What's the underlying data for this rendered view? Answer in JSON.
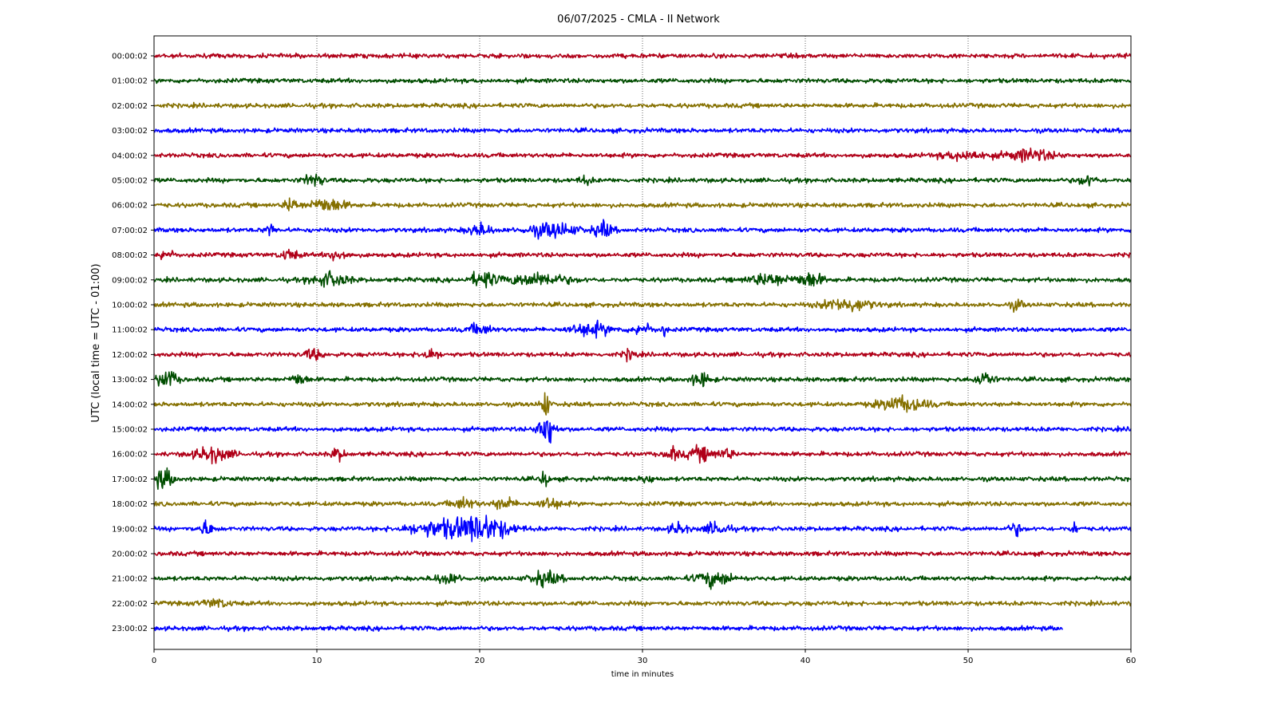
{
  "chart_data": {
    "type": "line",
    "title": "06/07/2025 - CMLA - II Network",
    "xlabel": "time in minutes",
    "ylabel": "UTC (local time = UTC - 01:00)",
    "xlim": [
      0,
      60
    ],
    "xticks": [
      0,
      10,
      20,
      30,
      40,
      50,
      60
    ],
    "grid": "vertical dotted lines at each x tick",
    "legend": "none",
    "colors": [
      "#b00018",
      "#004d00",
      "#857000",
      "#0000ff"
    ],
    "last_trace_end_minute": 55.8,
    "rows": [
      {
        "label": "00:00:02",
        "color": "#b00018",
        "events": []
      },
      {
        "label": "01:00:02",
        "color": "#004d00",
        "events": []
      },
      {
        "label": "02:00:02",
        "color": "#857000",
        "events": []
      },
      {
        "label": "03:00:02",
        "color": "#0000ff",
        "events": []
      },
      {
        "label": "04:00:02",
        "color": "#b00018",
        "events": [
          [
            49.8,
            1.6,
            1.8
          ],
          [
            53.8,
            1.5,
            2.6
          ]
        ]
      },
      {
        "label": "05:00:02",
        "color": "#004d00",
        "events": [
          [
            9.8,
            0.6,
            2.8
          ],
          [
            26.5,
            0.4,
            1.8
          ],
          [
            57.3,
            0.6,
            2.2
          ]
        ]
      },
      {
        "label": "06:00:02",
        "color": "#857000",
        "events": [
          [
            8.4,
            0.4,
            3.5
          ],
          [
            10.6,
            1.2,
            3.0
          ]
        ]
      },
      {
        "label": "07:00:02",
        "color": "#0000ff",
        "events": [
          [
            7.1,
            0.3,
            2.8
          ],
          [
            20.0,
            0.8,
            2.6
          ],
          [
            24.5,
            1.6,
            3.2
          ],
          [
            27.6,
            0.6,
            3.5
          ]
        ]
      },
      {
        "label": "08:00:02",
        "color": "#b00018",
        "events": [
          [
            0.7,
            0.5,
            2.2
          ],
          [
            8.3,
            0.6,
            2.2
          ],
          [
            11.3,
            0.6,
            2.4
          ]
        ]
      },
      {
        "label": "09:00:02",
        "color": "#004d00",
        "events": [
          [
            10.8,
            1.2,
            3.0
          ],
          [
            20.2,
            0.8,
            3.6
          ],
          [
            23.5,
            2.0,
            2.8
          ],
          [
            37.8,
            1.4,
            2.6
          ],
          [
            40.3,
            0.8,
            3.4
          ]
        ]
      },
      {
        "label": "10:00:02",
        "color": "#857000",
        "events": [
          [
            42.6,
            1.6,
            2.8
          ],
          [
            53.0,
            0.4,
            2.2
          ]
        ]
      },
      {
        "label": "11:00:02",
        "color": "#0000ff",
        "events": [
          [
            20.0,
            0.8,
            2.2
          ],
          [
            26.8,
            1.4,
            2.8
          ],
          [
            30.0,
            0.6,
            2.6
          ],
          [
            31.3,
            0.2,
            2.6
          ]
        ]
      },
      {
        "label": "12:00:02",
        "color": "#b00018",
        "events": [
          [
            9.8,
            0.6,
            2.2
          ],
          [
            16.9,
            0.6,
            2.4
          ],
          [
            29.2,
            0.4,
            2.2
          ]
        ]
      },
      {
        "label": "13:00:02",
        "color": "#004d00",
        "events": [
          [
            0.8,
            0.6,
            4.4
          ],
          [
            8.9,
            0.5,
            2.6
          ],
          [
            33.6,
            0.6,
            3.2
          ],
          [
            51.0,
            0.6,
            3.2
          ]
        ]
      },
      {
        "label": "14:00:02",
        "color": "#857000",
        "events": [
          [
            24.0,
            0.25,
            8.0
          ],
          [
            46.0,
            1.6,
            3.2
          ]
        ]
      },
      {
        "label": "15:00:02",
        "color": "#0000ff",
        "events": [
          [
            24.1,
            0.5,
            8.5
          ]
        ]
      },
      {
        "label": "16:00:02",
        "color": "#b00018",
        "events": [
          [
            3.6,
            1.2,
            3.2
          ],
          [
            11.3,
            0.4,
            2.8
          ],
          [
            31.8,
            0.4,
            3.0
          ],
          [
            33.6,
            1.0,
            2.8
          ],
          [
            35.2,
            0.4,
            2.4
          ]
        ]
      },
      {
        "label": "17:00:02",
        "color": "#004d00",
        "events": [
          [
            0.6,
            0.6,
            4.4
          ],
          [
            24.0,
            0.2,
            6.0
          ],
          [
            30.3,
            0.4,
            2.0
          ]
        ]
      },
      {
        "label": "18:00:02",
        "color": "#857000",
        "events": [
          [
            19.0,
            0.8,
            2.4
          ],
          [
            21.5,
            0.7,
            2.4
          ],
          [
            24.3,
            0.8,
            2.4
          ]
        ]
      },
      {
        "label": "19:00:02",
        "color": "#0000ff",
        "events": [
          [
            3.2,
            0.5,
            3.0
          ],
          [
            17.5,
            2.2,
            3.2
          ],
          [
            20.2,
            1.8,
            5.4
          ],
          [
            32.2,
            0.6,
            2.4
          ],
          [
            34.6,
            0.8,
            2.8
          ],
          [
            52.9,
            0.4,
            2.6
          ],
          [
            56.5,
            0.2,
            2.8
          ]
        ]
      },
      {
        "label": "20:00:02",
        "color": "#b00018",
        "events": []
      },
      {
        "label": "21:00:02",
        "color": "#004d00",
        "events": [
          [
            18.0,
            0.8,
            2.4
          ],
          [
            24.0,
            1.0,
            3.0
          ],
          [
            34.4,
            1.2,
            3.2
          ]
        ]
      },
      {
        "label": "22:00:02",
        "color": "#857000",
        "events": [
          [
            3.8,
            1.0,
            1.6
          ]
        ]
      },
      {
        "label": "23:00:02",
        "color": "#0000ff",
        "events": []
      }
    ]
  }
}
